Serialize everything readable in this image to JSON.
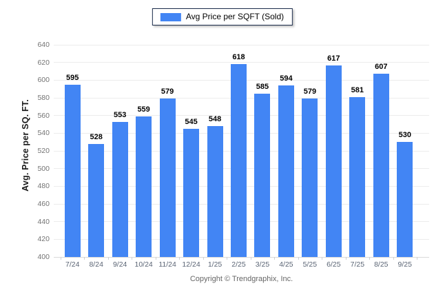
{
  "chart_data": {
    "type": "bar",
    "legend": "Avg Price per SQFT (Sold)",
    "legend_position": "top-center",
    "categories": [
      "7/24",
      "8/24",
      "9/24",
      "10/24",
      "11/24",
      "12/24",
      "1/25",
      "2/25",
      "3/25",
      "4/25",
      "5/25",
      "6/25",
      "7/25",
      "8/25",
      "9/25"
    ],
    "values": [
      595,
      528,
      553,
      559,
      579,
      545,
      548,
      618,
      585,
      594,
      579,
      617,
      581,
      607,
      530
    ],
    "xlabel": "",
    "ylabel": "Avg. Price per SQ. FT.",
    "ylim": [
      400,
      640
    ],
    "ytick_step": 20,
    "grid": "horizontal",
    "bar_color": "#4285f4",
    "colors": {
      "bar": "#4285f4",
      "gridline": "#ececec",
      "axis_line": "#d9d9d9",
      "y_tick_label": "#737373",
      "x_tick_label": "#5a6474",
      "value_label": "#000000",
      "legend_border": "#1b2b4a"
    }
  },
  "footer": {
    "copyright": "Copyright © Trendgraphix, Inc."
  }
}
